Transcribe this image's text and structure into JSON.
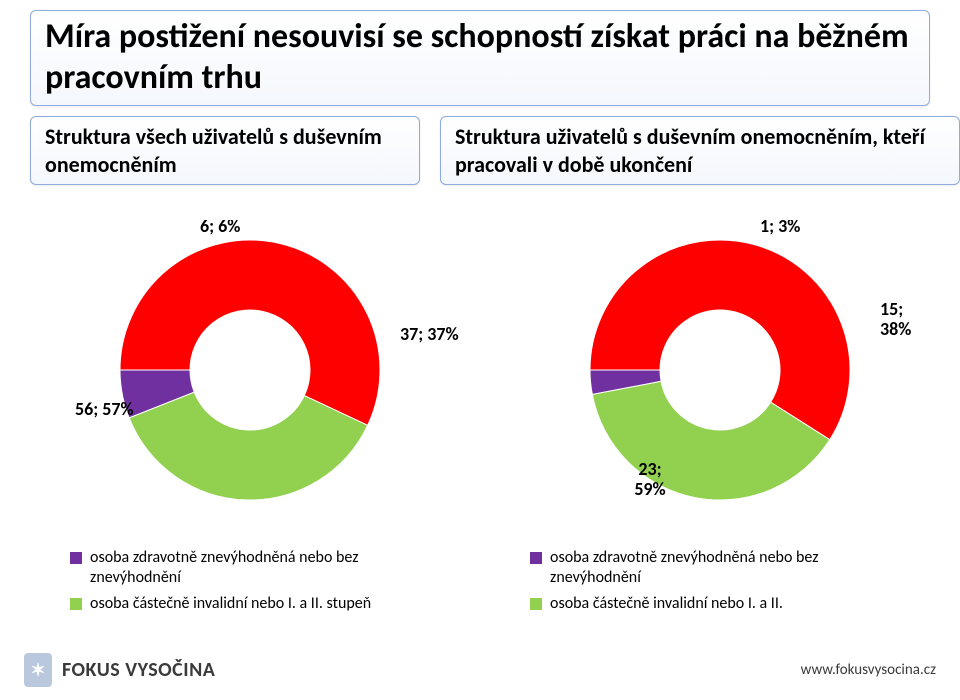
{
  "title": "Míra postižení nesouvisí se schopností získat práci na běžném pracovním trhu",
  "subtitle_left": "Struktura všech uživatelů s duševním onemocněním",
  "subtitle_right": "Struktura uživatelů s duševním onemocněním, kteří pracovali v době ukončení",
  "colors": {
    "red": "#ff0000",
    "green": "#92d050",
    "purple": "#7030a0",
    "title_border": "#8faadc",
    "text": "#000000",
    "background": "#ffffff"
  },
  "chart_left": {
    "type": "donut",
    "inner_radius": 60,
    "outer_radius": 130,
    "slices": [
      {
        "key": "red",
        "count": 56,
        "pct": 57,
        "label": "56; 57%"
      },
      {
        "key": "green",
        "count": 37,
        "pct": 37,
        "label": "37; 37%"
      },
      {
        "key": "purple",
        "count": 6,
        "pct": 6,
        "label": "6; 6%"
      }
    ],
    "legend": [
      {
        "color": "purple",
        "text": "osoba zdravotně znevýhodněná nebo bez znevýhodnění"
      },
      {
        "color": "green",
        "text": "osoba částečně invalidní nebo I. a II. stupeň"
      }
    ]
  },
  "chart_right": {
    "type": "donut",
    "inner_radius": 60,
    "outer_radius": 130,
    "slices": [
      {
        "key": "red",
        "count": 23,
        "pct": 59,
        "label": "23;\n59%"
      },
      {
        "key": "green",
        "count": 15,
        "pct": 38,
        "label": "15;\n38%"
      },
      {
        "key": "purple",
        "count": 1,
        "pct": 3,
        "label": "1; 3%"
      }
    ],
    "legend": [
      {
        "color": "purple",
        "text": "osoba zdravotně znevýhodněná nebo bez znevýhodnění"
      },
      {
        "color": "green",
        "text": "osoba částečně invalidní nebo I. a II."
      }
    ]
  },
  "footer": {
    "brand": "FOKUS VYSOČINA",
    "logo_glyph": "✶",
    "url": "www.fokusvysocina.cz"
  },
  "typography": {
    "title_fontsize": 34,
    "subtitle_fontsize": 22,
    "datalabel_fontsize": 18,
    "legend_fontsize": 16,
    "font_family": "Calibri, Arial, sans-serif"
  }
}
